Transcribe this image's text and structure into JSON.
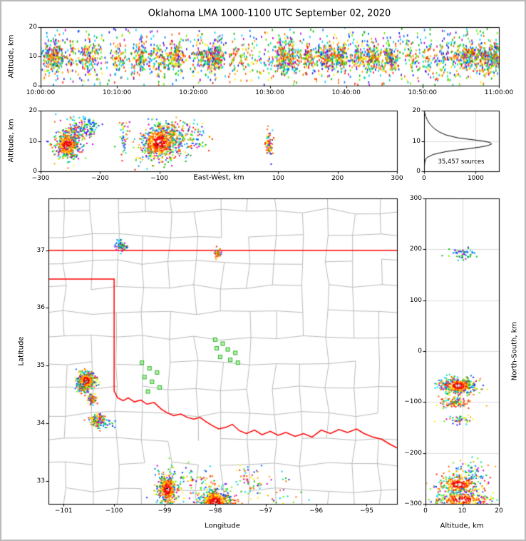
{
  "title": "Oklahoma LMA 1000-1100 UTC September 02, 2020",
  "colors": {
    "palette": [
      "#2222ee",
      "#0077ff",
      "#00ccff",
      "#00ddaa",
      "#00bb00",
      "#66ee00",
      "#ffee00",
      "#ffaa00",
      "#ff6600",
      "#ff2200",
      "#cc00cc"
    ],
    "cool": [
      "#2222ee",
      "#0077ff",
      "#00ccff",
      "#00bb00",
      "#66ee00",
      "#cc00cc"
    ],
    "hot": [
      "#ff2200",
      "#ff6600",
      "#ffaa00",
      "#ffee00"
    ],
    "red_core": [
      "#ff0000",
      "#ee1100"
    ],
    "core": [
      "#ffffff",
      "#f4f4f4",
      "#111111",
      "#ff0000"
    ],
    "station_fill": "#b8f0a8",
    "station_edge": "#2db32d",
    "state_border": "#ff0000",
    "county_line": "#bbbbbb",
    "gridline": "#dddddd",
    "frame": "#b9b9b9",
    "curve": "#000000"
  },
  "chart_data": [
    {
      "id": "time-height",
      "type": "scatter",
      "ylabel": "Altitude, km",
      "xlim": [
        0,
        3600
      ],
      "ylim": [
        0,
        20
      ],
      "xticks": [
        {
          "v": 0,
          "label": "10:00:00"
        },
        {
          "v": 600,
          "label": "10:10:00"
        },
        {
          "v": 1200,
          "label": "10:20:00"
        },
        {
          "v": 1800,
          "label": "10:30:00"
        },
        {
          "v": 2400,
          "label": "10:40:00"
        },
        {
          "v": 3000,
          "label": "10:50:00"
        },
        {
          "v": 3600,
          "label": "11:00:00"
        }
      ],
      "yticks": [
        {
          "v": 0,
          "label": "0"
        },
        {
          "v": 10,
          "label": "10"
        },
        {
          "v": 20,
          "label": "20"
        }
      ],
      "scatter": {
        "clumps": 75,
        "clump_sd_s": 26,
        "points_per_clump": 30,
        "uniform_points": 750,
        "alt_mean_km": 9.8,
        "alt_sd_km": 2.6,
        "low_tail_points": 130,
        "high_tail_points": 110
      }
    },
    {
      "id": "east-west-height",
      "type": "scatter",
      "ylabel": "Altitude, km",
      "xlabel": "East-West, km",
      "xlim": [
        -300,
        300
      ],
      "ylim": [
        0,
        20
      ],
      "xticks": [
        {
          "v": -300,
          "label": "−300"
        },
        {
          "v": -200,
          "label": "−200"
        },
        {
          "v": -100,
          "label": "−100"
        },
        {
          "v": 0,
          "label": ""
        },
        {
          "v": 100,
          "label": "100"
        },
        {
          "v": 200,
          "label": "200"
        },
        {
          "v": 300,
          "label": "300"
        }
      ],
      "yticks": [
        {
          "v": 0,
          "label": "0"
        },
        {
          "v": 10,
          "label": "10"
        },
        {
          "v": 20,
          "label": "20"
        }
      ],
      "clusters": [
        {
          "cx": -255,
          "cy": 8.5,
          "sx": 10,
          "sy": 2.2,
          "n": 450,
          "style": "core"
        },
        {
          "cx": -240,
          "cy": 13,
          "sx": 12,
          "sy": 2.5,
          "n": 150,
          "style": "mixed"
        },
        {
          "cx": -215,
          "cy": 15,
          "sx": 8,
          "sy": 2,
          "n": 60,
          "style": "coolmix"
        },
        {
          "cx": -160,
          "cy": 11,
          "sx": 4,
          "sy": 4,
          "n": 45,
          "style": "mixed"
        },
        {
          "cx": -100,
          "cy": 9.5,
          "sx": 16,
          "sy": 3,
          "n": 650,
          "style": "core"
        },
        {
          "cx": -75,
          "cy": 12,
          "sx": 12,
          "sy": 3,
          "n": 120,
          "style": "mixed"
        },
        {
          "cx": -42,
          "cy": 10,
          "sx": 12,
          "sy": 2.5,
          "n": 80,
          "style": "mixed"
        },
        {
          "cx": 85,
          "cy": 9,
          "sx": 3,
          "sy": 2.3,
          "n": 80,
          "style": "hotmix"
        }
      ]
    },
    {
      "id": "altitude-histogram",
      "type": "line",
      "annotation": "35,457 sources",
      "xlim": [
        0,
        1450
      ],
      "ylim": [
        0,
        20
      ],
      "xticks": [
        {
          "v": 0,
          "label": "0"
        },
        {
          "v": 1000,
          "label": "1000"
        }
      ],
      "yticks": [
        {
          "v": 0,
          "label": "0"
        },
        {
          "v": 10,
          "label": "10"
        },
        {
          "v": 20,
          "label": "20"
        }
      ],
      "gridlines": {
        "x": [
          1000
        ],
        "y": [
          10
        ]
      },
      "series": {
        "altitude_km": [
          0,
          1,
          2,
          3,
          4,
          4.5,
          5,
          5.5,
          6,
          6.5,
          7,
          7.5,
          8,
          8.5,
          9,
          9.5,
          10,
          10.5,
          11,
          12,
          13,
          14,
          15,
          16,
          17,
          18,
          19,
          20
        ],
        "count": [
          0,
          4,
          8,
          14,
          30,
          55,
          110,
          170,
          290,
          430,
          640,
          880,
          1090,
          1240,
          1310,
          1280,
          1130,
          900,
          660,
          420,
          290,
          205,
          140,
          95,
          60,
          35,
          15,
          4
        ]
      }
    },
    {
      "id": "plan-view",
      "type": "scatter",
      "xlabel": "Longitude",
      "ylabel": "Latitude",
      "xlim": [
        -101.3,
        -94.4
      ],
      "ylim": [
        32.6,
        37.9
      ],
      "xticks": [
        {
          "v": -101,
          "label": "−101"
        },
        {
          "v": -100,
          "label": "−100"
        },
        {
          "v": -99,
          "label": "−99"
        },
        {
          "v": -98,
          "label": "−98"
        },
        {
          "v": -97,
          "label": "−97"
        },
        {
          "v": -96,
          "label": "−96"
        },
        {
          "v": -95,
          "label": "−95"
        }
      ],
      "yticks": [
        {
          "v": 33,
          "label": "33"
        },
        {
          "v": 34,
          "label": "34"
        },
        {
          "v": 35,
          "label": "35"
        },
        {
          "v": 36,
          "label": "36"
        },
        {
          "v": 37,
          "label": "37"
        }
      ],
      "state_border": {
        "north_lat": 37.0,
        "panhandle_south_lat": 36.5,
        "panhandle_east_lon": -100.0,
        "red_river": [
          [
            -100.0,
            34.56
          ],
          [
            -99.93,
            34.44
          ],
          [
            -99.82,
            34.39
          ],
          [
            -99.72,
            34.44
          ],
          [
            -99.6,
            34.37
          ],
          [
            -99.47,
            34.4
          ],
          [
            -99.35,
            34.33
          ],
          [
            -99.21,
            34.36
          ],
          [
            -99.06,
            34.24
          ],
          [
            -98.95,
            34.18
          ],
          [
            -98.82,
            34.13
          ],
          [
            -98.68,
            34.16
          ],
          [
            -98.55,
            34.1
          ],
          [
            -98.42,
            34.07
          ],
          [
            -98.3,
            34.1
          ],
          [
            -98.17,
            34.02
          ],
          [
            -98.06,
            33.96
          ],
          [
            -97.93,
            33.9
          ],
          [
            -97.78,
            33.93
          ],
          [
            -97.66,
            33.98
          ],
          [
            -97.52,
            33.87
          ],
          [
            -97.38,
            33.82
          ],
          [
            -97.22,
            33.88
          ],
          [
            -97.07,
            33.8
          ],
          [
            -96.91,
            33.86
          ],
          [
            -96.75,
            33.79
          ],
          [
            -96.6,
            33.84
          ],
          [
            -96.42,
            33.77
          ],
          [
            -96.25,
            33.82
          ],
          [
            -96.08,
            33.76
          ],
          [
            -95.9,
            33.88
          ],
          [
            -95.72,
            33.82
          ],
          [
            -95.55,
            33.89
          ],
          [
            -95.38,
            33.84
          ],
          [
            -95.2,
            33.9
          ],
          [
            -95.05,
            33.82
          ],
          [
            -94.88,
            33.76
          ],
          [
            -94.7,
            33.72
          ],
          [
            -94.55,
            33.64
          ],
          [
            -94.4,
            33.57
          ]
        ]
      },
      "county_grid": {
        "lon_step": 0.52,
        "lat_step": 0.44,
        "jitter_deg": 0.1,
        "skip_fraction": 0.15
      },
      "stations_lon_lat": [
        [
          -99.45,
          35.05
        ],
        [
          -99.3,
          34.95
        ],
        [
          -99.15,
          34.88
        ],
        [
          -99.4,
          34.8
        ],
        [
          -99.25,
          34.72
        ],
        [
          -99.1,
          34.62
        ],
        [
          -99.33,
          34.55
        ],
        [
          -98.0,
          35.45
        ],
        [
          -97.85,
          35.38
        ],
        [
          -97.97,
          35.3
        ],
        [
          -97.75,
          35.28
        ],
        [
          -97.6,
          35.22
        ],
        [
          -97.9,
          35.15
        ],
        [
          -97.7,
          35.1
        ],
        [
          -97.55,
          35.05
        ]
      ],
      "clusters": [
        {
          "cx": -100.55,
          "cy": 34.74,
          "sx": 0.085,
          "sy": 0.075,
          "n": 500,
          "style": "core"
        },
        {
          "cx": -100.62,
          "cy": 34.6,
          "sx": 0.05,
          "sy": 0.04,
          "n": 60,
          "style": "mixed"
        },
        {
          "cx": -100.44,
          "cy": 34.42,
          "sx": 0.045,
          "sy": 0.045,
          "n": 90,
          "style": "hotmix"
        },
        {
          "cx": -100.33,
          "cy": 34.06,
          "sx": 0.07,
          "sy": 0.055,
          "n": 130,
          "style": "hotmix"
        },
        {
          "cx": -100.15,
          "cy": 34.0,
          "sx": 0.12,
          "sy": 0.05,
          "n": 40,
          "style": "coolmix"
        },
        {
          "cx": -98.95,
          "cy": 32.85,
          "sx": 0.1,
          "sy": 0.13,
          "n": 380,
          "style": "core"
        },
        {
          "cx": -98.0,
          "cy": 32.62,
          "sx": 0.17,
          "sy": 0.13,
          "n": 650,
          "style": "core"
        },
        {
          "cx": -98.45,
          "cy": 33.05,
          "sx": 0.3,
          "sy": 0.15,
          "n": 70,
          "style": "mixed"
        },
        {
          "cx": -97.35,
          "cy": 33.0,
          "sx": 0.18,
          "sy": 0.14,
          "n": 55,
          "style": "mixed"
        },
        {
          "cx": -96.7,
          "cy": 32.85,
          "sx": 0.3,
          "sy": 0.18,
          "n": 30,
          "style": "mixed"
        },
        {
          "cx": -99.85,
          "cy": 37.08,
          "sx": 0.05,
          "sy": 0.045,
          "n": 55,
          "style": "coolmix"
        },
        {
          "cx": -97.95,
          "cy": 36.93,
          "sx": 0.035,
          "sy": 0.05,
          "n": 40,
          "style": "hotmix"
        }
      ]
    },
    {
      "id": "north-south-height",
      "type": "scatter",
      "xlabel": "Altitude, km",
      "ylabel": "North-South, km",
      "xlim": [
        0,
        20
      ],
      "ylim": [
        -300,
        300
      ],
      "xticks": [
        {
          "v": 0,
          "label": "0"
        },
        {
          "v": 10,
          "label": "10"
        },
        {
          "v": 20,
          "label": "20"
        }
      ],
      "yticks": [
        {
          "v": 300,
          "label": "300"
        },
        {
          "v": 200,
          "label": "200"
        },
        {
          "v": 100,
          "label": "100"
        },
        {
          "v": 0,
          "label": "0"
        },
        {
          "v": -100,
          "label": "−100"
        },
        {
          "v": -200,
          "label": "−200"
        },
        {
          "v": -300,
          "label": "−300"
        }
      ],
      "gridlines": {
        "x": [
          10,
          20
        ],
        "y": [
          -200,
          -100,
          0,
          100,
          200
        ]
      },
      "clusters": [
        {
          "cx": 9,
          "cy": -68,
          "sx": 2.3,
          "sy": 8,
          "n": 420,
          "style": "core"
        },
        {
          "cx": 8.5,
          "cy": -100,
          "sx": 2,
          "sy": 6,
          "n": 110,
          "style": "hotmix"
        },
        {
          "cx": 9,
          "cy": -135,
          "sx": 2,
          "sy": 5,
          "n": 45,
          "style": "mixed"
        },
        {
          "cx": 10,
          "cy": 190,
          "sx": 1.8,
          "sy": 6,
          "n": 55,
          "style": "coolmix"
        },
        {
          "cx": 12.5,
          "cy": -235,
          "sx": 2.5,
          "sy": 12,
          "n": 60,
          "style": "mixed"
        },
        {
          "cx": 9,
          "cy": -262,
          "sx": 3,
          "sy": 10,
          "n": 280,
          "style": "core"
        },
        {
          "cx": 10,
          "cy": -292,
          "sx": 4,
          "sy": 9,
          "n": 320,
          "style": "core"
        }
      ]
    }
  ]
}
